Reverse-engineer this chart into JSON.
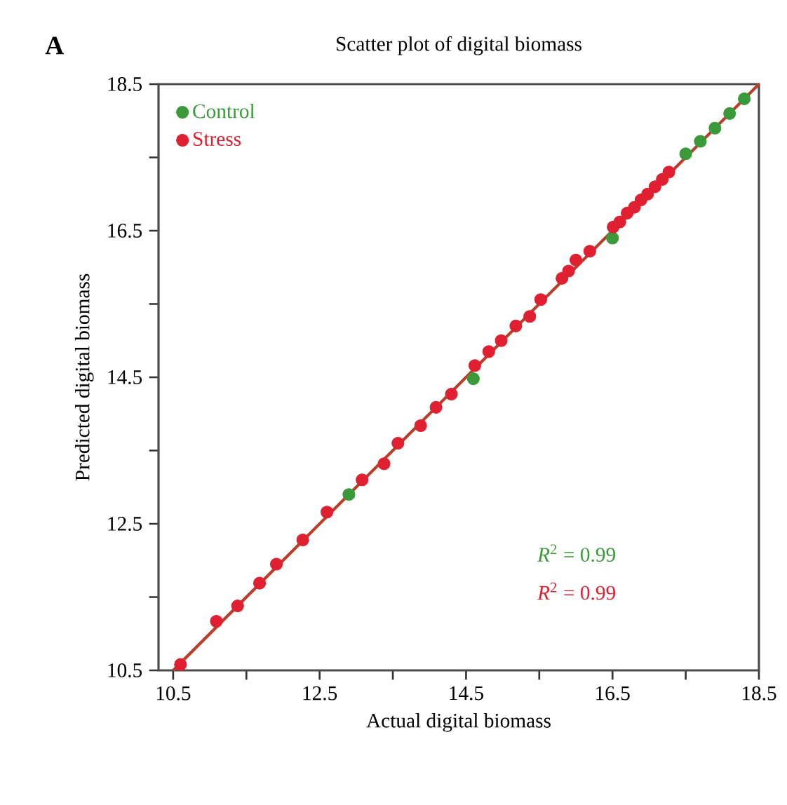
{
  "chart_data": {
    "type": "scatter",
    "title": "Scatter plot  of digital biomass",
    "xlabel": "Actual digital biomass",
    "ylabel": "Predicted digital biomass",
    "annotations": [
      "A",
      "*R*$^{2}$ = 0.99",
      "*R*$^{2}$ = 0.99"
    ],
    "xlim": [
      10.3,
      18.5
    ],
    "ylim": [
      10.5,
      18.5
    ],
    "xticks": [
      10.5,
      {
        "value": 11.5,
        "label": null
      },
      12.5,
      {
        "value": 13.5,
        "label": null
      },
      14.5,
      {
        "value": 15.5,
        "label": null
      },
      16.5,
      {
        "value": 17.5,
        "label": null
      },
      18.5
    ],
    "yticks": [
      10.5,
      {
        "value": 11.5,
        "label": null
      },
      12.5,
      {
        "value": 13.5,
        "label": null
      },
      14.5,
      {
        "value": 15.5,
        "label": null
      },
      16.5,
      {
        "value": 17.5,
        "label": null
      },
      18.5
    ],
    "legend": "top left",
    "grid": false,
    "series": [
      {
        "name": "Control",
        "marker": "circle",
        "color": "#3a9a3a",
        "x": [
          12.9,
          14.6,
          16.5,
          17.5,
          17.7,
          17.9,
          18.1,
          18.3
        ],
        "values": [
          12.9,
          14.48,
          16.4,
          17.55,
          17.72,
          17.9,
          18.1,
          18.3
        ]
      },
      {
        "name": "Stress",
        "marker": "circle",
        "color": "#e02030",
        "x": [
          10.6,
          11.09,
          11.38,
          11.68,
          11.91,
          12.27,
          12.6,
          13.08,
          13.38,
          13.57,
          13.88,
          14.09,
          14.3,
          14.62,
          14.81,
          14.98,
          15.18,
          15.37,
          15.52,
          15.81,
          15.9,
          16.0,
          16.19,
          16.51,
          16.6,
          16.7,
          16.8,
          16.89,
          16.98,
          17.08,
          17.18,
          17.27
        ],
        "values": [
          10.58,
          11.17,
          11.38,
          11.69,
          11.95,
          12.28,
          12.66,
          13.1,
          13.32,
          13.6,
          13.84,
          14.09,
          14.27,
          14.66,
          14.85,
          15.0,
          15.2,
          15.33,
          15.56,
          15.85,
          15.95,
          16.1,
          16.22,
          16.55,
          16.62,
          16.74,
          16.82,
          16.92,
          17.0,
          17.1,
          17.2,
          17.3
        ]
      },
      {
        "type": "line",
        "marker": "none",
        "color": "#b8402a",
        "x": [
          10.5,
          18.5
        ],
        "values": [
          10.5,
          18.5
        ]
      }
    ]
  }
}
